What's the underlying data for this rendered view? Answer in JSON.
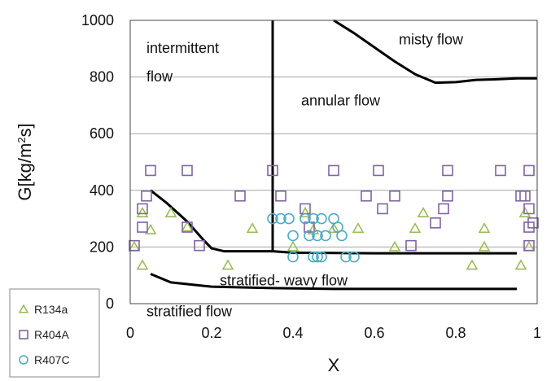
{
  "chart_data": {
    "type": "scatter",
    "xlabel": "X",
    "ylabel_parts": [
      "G[kg/m",
      "2",
      "s]"
    ],
    "xlim": [
      0,
      1
    ],
    "ylim": [
      0,
      1000
    ],
    "x_ticks": [
      0,
      0.2,
      0.4,
      0.6,
      0.8,
      1
    ],
    "x_tick_labels": [
      "0",
      "0.2",
      "0.4",
      "0.6",
      "0.8",
      "1"
    ],
    "y_ticks": [
      0,
      200,
      400,
      600,
      800,
      1000
    ],
    "y_tick_labels": [
      "0",
      "200",
      "400",
      "600",
      "800",
      "1000"
    ],
    "grid": "horizontal",
    "legend": "bottom-left",
    "regions": [
      {
        "name": "intermittent-flow",
        "lines": [
          "intermittent",
          "flow"
        ],
        "x": 0.04,
        "y": 885,
        "line_gap": 100
      },
      {
        "name": "misty-flow",
        "lines": [
          "misty flow"
        ],
        "x": 0.66,
        "y": 915,
        "line_gap": 0
      },
      {
        "name": "annular-flow",
        "lines": [
          "annular flow"
        ],
        "x": 0.42,
        "y": 700,
        "line_gap": 0
      },
      {
        "name": "stratified-wavy-flow",
        "lines": [
          "stratified- wavy flow"
        ],
        "x": 0.22,
        "y": 65,
        "line_gap": 0
      },
      {
        "name": "stratified-flow",
        "lines": [
          "stratified flow"
        ],
        "x": 0.04,
        "y": -45,
        "line_gap": 0
      }
    ],
    "boundaries": [
      {
        "name": "intermittent-annular-boundary",
        "points": [
          [
            0.35,
            1000
          ],
          [
            0.35,
            185
          ]
        ]
      },
      {
        "name": "annular-misty-boundary",
        "points": [
          [
            0.5,
            1000
          ],
          [
            0.55,
            955
          ],
          [
            0.6,
            905
          ],
          [
            0.65,
            855
          ],
          [
            0.7,
            810
          ],
          [
            0.75,
            780
          ],
          [
            0.8,
            782
          ],
          [
            0.85,
            790
          ],
          [
            0.9,
            792
          ],
          [
            0.95,
            795
          ],
          [
            1.0,
            795
          ]
        ]
      },
      {
        "name": "stratified-wavy-upper-boundary",
        "points": [
          [
            0.05,
            400
          ],
          [
            0.09,
            355
          ],
          [
            0.14,
            290
          ],
          [
            0.18,
            225
          ],
          [
            0.2,
            195
          ],
          [
            0.23,
            185
          ],
          [
            0.35,
            185
          ],
          [
            0.4,
            180
          ],
          [
            0.6,
            178
          ],
          [
            0.8,
            178
          ],
          [
            0.95,
            178
          ]
        ]
      },
      {
        "name": "stratified-lower-boundary",
        "points": [
          [
            0.05,
            105
          ],
          [
            0.1,
            75
          ],
          [
            0.2,
            60
          ],
          [
            0.35,
            55
          ],
          [
            0.5,
            52
          ],
          [
            0.7,
            52
          ],
          [
            0.95,
            52
          ]
        ]
      }
    ],
    "series": [
      {
        "name": "R134a",
        "marker": "triangle",
        "color": "#9bbb59",
        "points": [
          [
            0.01,
            200
          ],
          [
            0.03,
            320
          ],
          [
            0.03,
            135
          ],
          [
            0.05,
            260
          ],
          [
            0.1,
            320
          ],
          [
            0.14,
            270
          ],
          [
            0.24,
            135
          ],
          [
            0.3,
            265
          ],
          [
            0.4,
            200
          ],
          [
            0.43,
            320
          ],
          [
            0.45,
            260
          ],
          [
            0.5,
            265
          ],
          [
            0.56,
            265
          ],
          [
            0.65,
            200
          ],
          [
            0.7,
            265
          ],
          [
            0.72,
            320
          ],
          [
            0.84,
            135
          ],
          [
            0.87,
            265
          ],
          [
            0.87,
            200
          ],
          [
            0.96,
            135
          ],
          [
            0.97,
            320
          ],
          [
            0.98,
            200
          ]
        ]
      },
      {
        "name": "R404A",
        "marker": "square",
        "color": "#8064a2",
        "points": [
          [
            0.01,
            205
          ],
          [
            0.03,
            335
          ],
          [
            0.03,
            270
          ],
          [
            0.04,
            380
          ],
          [
            0.05,
            470
          ],
          [
            0.14,
            470
          ],
          [
            0.14,
            270
          ],
          [
            0.17,
            205
          ],
          [
            0.27,
            380
          ],
          [
            0.35,
            470
          ],
          [
            0.37,
            380
          ],
          [
            0.43,
            335
          ],
          [
            0.44,
            270
          ],
          [
            0.5,
            470
          ],
          [
            0.58,
            380
          ],
          [
            0.61,
            470
          ],
          [
            0.62,
            335
          ],
          [
            0.65,
            380
          ],
          [
            0.69,
            205
          ],
          [
            0.75,
            285
          ],
          [
            0.77,
            335
          ],
          [
            0.78,
            380
          ],
          [
            0.78,
            470
          ],
          [
            0.91,
            470
          ],
          [
            0.96,
            380
          ],
          [
            0.97,
            380
          ],
          [
            0.98,
            470
          ],
          [
            0.98,
            335
          ],
          [
            0.98,
            270
          ],
          [
            0.99,
            285
          ],
          [
            0.98,
            205
          ]
        ]
      },
      {
        "name": "R407C",
        "marker": "circle",
        "color": "#4bacc6",
        "points": [
          [
            0.35,
            300
          ],
          [
            0.37,
            300
          ],
          [
            0.39,
            300
          ],
          [
            0.4,
            240
          ],
          [
            0.4,
            165
          ],
          [
            0.43,
            300
          ],
          [
            0.44,
            240
          ],
          [
            0.45,
            300
          ],
          [
            0.45,
            165
          ],
          [
            0.46,
            240
          ],
          [
            0.46,
            165
          ],
          [
            0.47,
            300
          ],
          [
            0.48,
            240
          ],
          [
            0.47,
            165
          ],
          [
            0.5,
            300
          ],
          [
            0.51,
            270
          ],
          [
            0.52,
            240
          ],
          [
            0.53,
            165
          ],
          [
            0.55,
            165
          ]
        ]
      }
    ]
  }
}
